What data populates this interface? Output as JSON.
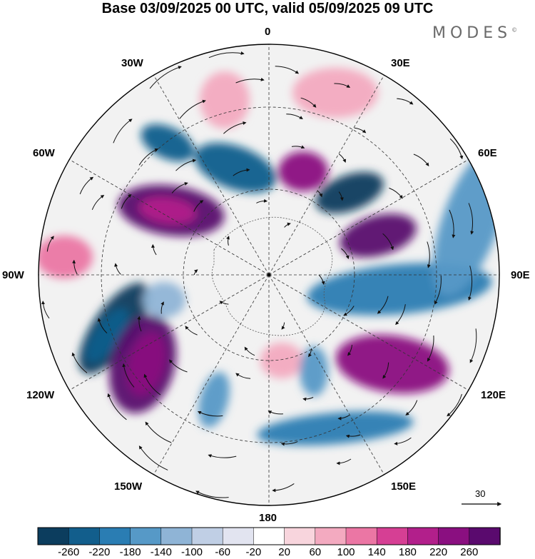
{
  "header": {
    "title": "Base 03/09/2025 00 UTC, valid 05/09/2025 09 UTC",
    "brand": "MODES",
    "brand_mark": "©"
  },
  "map": {
    "projection": "south-polar-stereographic",
    "meridian_labels": {
      "lon_0": "0",
      "lon_30e": "30E",
      "lon_60e": "60E",
      "lon_90e": "90E",
      "lon_120e": "120E",
      "lon_150e": "150E",
      "lon_180": "180",
      "lon_150w": "150W",
      "lon_120w": "120W",
      "lon_90w": "90W",
      "lon_60w": "60W",
      "lon_30w": "30W"
    },
    "reference_vector_label": "30"
  },
  "colorbar": {
    "tick_labels": [
      "-260",
      "-220",
      "-180",
      "-140",
      "-100",
      "-60",
      "-20",
      "20",
      "60",
      "100",
      "140",
      "180",
      "220",
      "260"
    ],
    "colors": [
      "#0c3d5e",
      "#125e8c",
      "#2a7db3",
      "#5699c7",
      "#8fb4d6",
      "#c0cfe5",
      "#e2e4f0",
      "#ffffff",
      "#f8d5dd",
      "#f3aac0",
      "#eb76a4",
      "#d63f94",
      "#b21f8b",
      "#8a0f80",
      "#5a0a6e"
    ]
  },
  "anomalies": [
    {
      "name": "neg-1",
      "value": -260
    },
    {
      "name": "pos-1",
      "value": 260
    }
  ]
}
